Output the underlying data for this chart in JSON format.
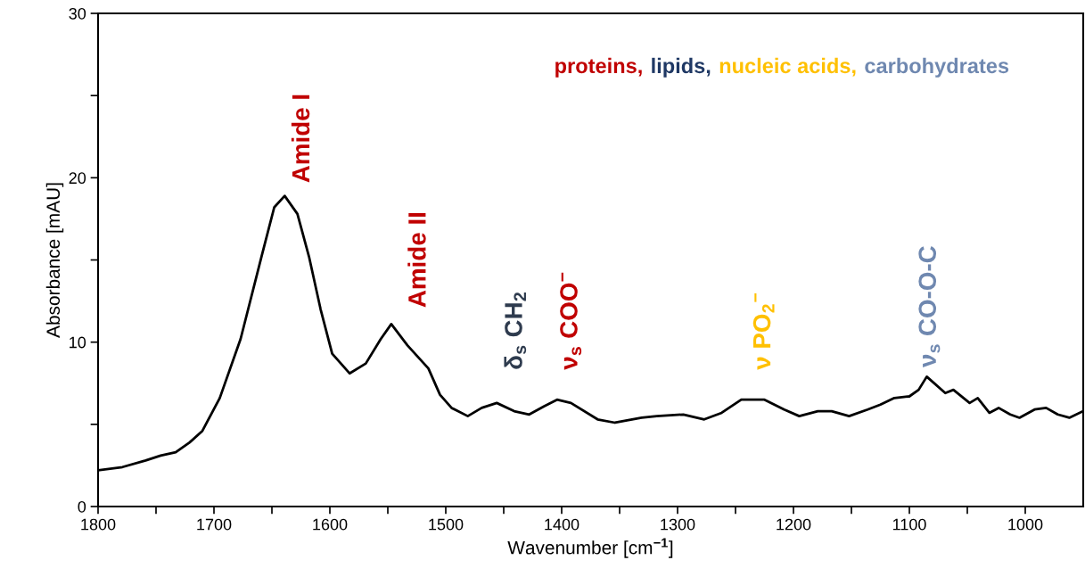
{
  "chart_data": {
    "type": "line",
    "xlabel": "Wavenumber [cm$^{−1}$]",
    "ylabel": "Absorbance [mAU]",
    "x": [
      1800,
      1779,
      1759,
      1746,
      1733,
      1721,
      1710,
      1695,
      1677,
      1659,
      1648,
      1639,
      1628,
      1618,
      1608,
      1598,
      1583,
      1569,
      1556,
      1547,
      1533,
      1515,
      1505,
      1495,
      1481,
      1469,
      1456,
      1441,
      1428,
      1415,
      1404,
      1392,
      1369,
      1354,
      1331,
      1318,
      1295,
      1277,
      1262,
      1245,
      1225,
      1208,
      1195,
      1179,
      1167,
      1152,
      1136,
      1125,
      1113,
      1100,
      1092,
      1085,
      1069,
      1062,
      1048,
      1041,
      1031,
      1023,
      1013,
      1005,
      992,
      982,
      972,
      962,
      950
    ],
    "series": [
      {
        "color": "#000000",
        "values": [
          2.2,
          2.4,
          2.8,
          3.1,
          3.3,
          3.9,
          4.6,
          6.6,
          10.2,
          15.2,
          18.2,
          18.9,
          17.8,
          15.2,
          12.0,
          9.3,
          8.1,
          8.7,
          10.2,
          11.1,
          9.8,
          8.4,
          6.8,
          6.0,
          5.5,
          6.0,
          6.3,
          5.8,
          5.6,
          6.1,
          6.5,
          6.3,
          5.3,
          5.1,
          5.4,
          5.5,
          5.6,
          5.3,
          5.7,
          6.5,
          6.5,
          5.9,
          5.5,
          5.8,
          5.8,
          5.5,
          5.9,
          6.2,
          6.6,
          6.7,
          7.1,
          7.9,
          6.9,
          7.1,
          6.3,
          6.6,
          5.7,
          6.0,
          5.6,
          5.4,
          5.9,
          6.0,
          5.6,
          5.4,
          5.8
        ]
      }
    ],
    "xlim": [
      1800,
      950
    ],
    "xticks": [
      1800,
      {
        "value": 1750,
        "label": null
      },
      1700,
      {
        "value": 1650,
        "label": null
      },
      1600,
      {
        "value": 1550,
        "label": null
      },
      1500,
      {
        "value": 1450,
        "label": null
      },
      1400,
      {
        "value": 1350,
        "label": null
      },
      1300,
      {
        "value": 1250,
        "label": null
      },
      1200,
      {
        "value": 1150,
        "label": null
      },
      1100,
      {
        "value": 1050,
        "label": null
      },
      1000
    ],
    "ylim": [
      0,
      30
    ],
    "yticks": [
      0,
      {
        "value": 5,
        "label": null
      },
      10,
      {
        "value": 15,
        "label": null
      },
      20,
      {
        "value": 25,
        "label": null
      },
      30
    ],
    "grid": false,
    "legend": false,
    "marker": "none",
    "line_style": "solid",
    "annotations": [
      "Amide I",
      "Amide II",
      "δ$_{s}$ CH$_{2}$",
      "ν$_{s}$ COO$^{−}$",
      "ν PO$_{2}$$^{−}$",
      "ν$_{s}$ CO-O-C",
      "proteins,",
      "lipids,",
      "nucleic acids,",
      "carbohydrates"
    ]
  }
}
